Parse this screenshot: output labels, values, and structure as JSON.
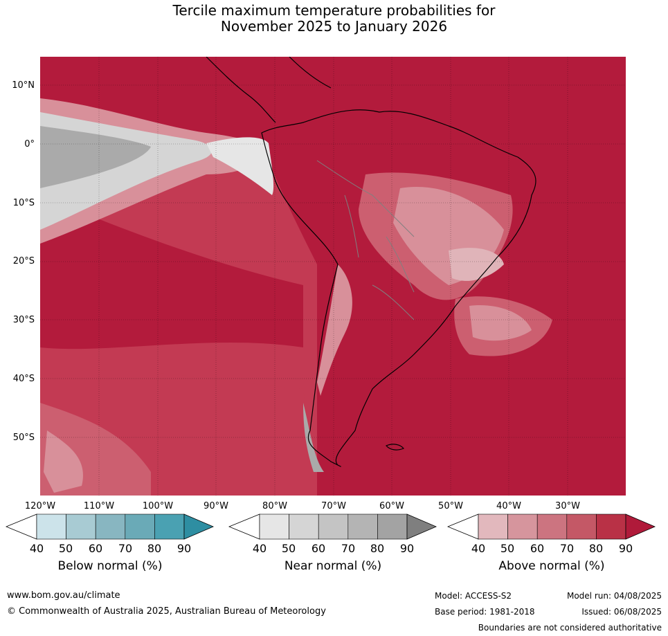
{
  "title": {
    "line1": "Tercile maximum temperature probabilities for",
    "line2": "November 2025 to January 2026"
  },
  "map": {
    "lat_labels": [
      "10°N",
      "0°",
      "10°S",
      "20°S",
      "30°S",
      "40°S",
      "50°S"
    ],
    "lon_labels": [
      "120°W",
      "110°W",
      "100°W",
      "90°W",
      "80°W",
      "70°W",
      "60°W",
      "50°W",
      "40°W",
      "30°W"
    ],
    "region": "South America and eastern Pacific",
    "colors": {
      "above_90": "#b31b3c",
      "above_80": "#c33a53",
      "above_70": "#cc5f70",
      "above_60": "#d8909a",
      "above_50": "#e0b4b9",
      "near_60": "#d5d5d5",
      "near_80": "#aaaaaa",
      "coast": "#000000",
      "borders": "#808080"
    }
  },
  "colorbars": {
    "ticks": [
      "40",
      "50",
      "60",
      "70",
      "80",
      "90"
    ],
    "below": {
      "label": "Below normal (%)",
      "colors": [
        "#ffffff",
        "#cce3ea",
        "#a8cbd3",
        "#88b6c1",
        "#6aaab7",
        "#4aa1b2",
        "#2e8ea2"
      ]
    },
    "near": {
      "label": "Near normal (%)",
      "colors": [
        "#ffffff",
        "#e6e6e6",
        "#d5d5d5",
        "#c4c4c4",
        "#b4b4b4",
        "#a3a3a3",
        "#7f7f7f"
      ]
    },
    "above": {
      "label": "Above normal (%)",
      "colors": [
        "#ffffff",
        "#e2b8bd",
        "#d6959d",
        "#cc7480",
        "#c45866",
        "#b93146",
        "#b01a3a"
      ]
    }
  },
  "footer": {
    "website": "www.bom.gov.au/climate",
    "copyright": "© Commonwealth of Australia 2025, Australian Bureau of Meteorology",
    "model": "Model: ACCESS-S2",
    "model_run": "Model run: 04/08/2025",
    "base_period": "Base period: 1981-2018",
    "issued": "Issued: 06/08/2025",
    "disclaimer": "Boundaries are not considered authoritative"
  }
}
